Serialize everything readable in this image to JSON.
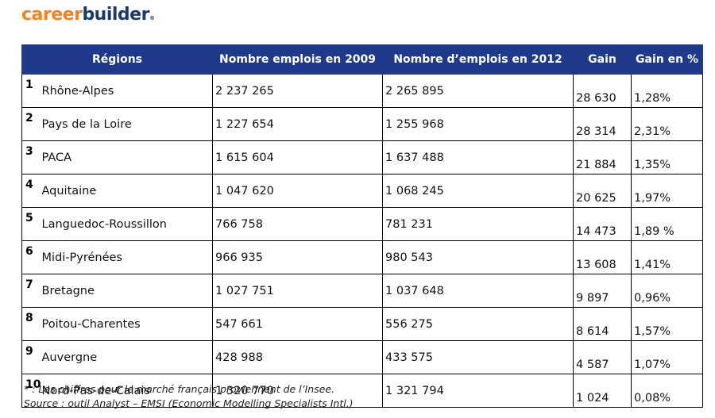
{
  "logo": {
    "part1": "career",
    "part2": "builder",
    "registered": "®"
  },
  "table": {
    "headers": {
      "regions": "Régions",
      "jobs_2009": "Nombre emplois en 2009",
      "jobs_2012": "Nombre d’emplois en 2012",
      "gain": "Gain",
      "gain_pct": "Gain en %"
    },
    "rows": [
      {
        "rank": "1",
        "region": "Rhône-Alpes",
        "jobs_2009": "2 237 265",
        "jobs_2012": "2 265 895",
        "gain": "28 630",
        "gain_pct": "1,28%"
      },
      {
        "rank": "2",
        "region": "Pays de la Loire",
        "jobs_2009": "1 227 654",
        "jobs_2012": "1 255 968",
        "gain": "28 314",
        "gain_pct": "2,31%"
      },
      {
        "rank": "3",
        "region": "PACA",
        "jobs_2009": "1 615 604",
        "jobs_2012": "1 637 488",
        "gain": "21 884",
        "gain_pct": "1,35%"
      },
      {
        "rank": "4",
        "region": "Aquitaine",
        "jobs_2009": "1 047 620",
        "jobs_2012": "1 068 245",
        "gain": "20 625",
        "gain_pct": "1,97%"
      },
      {
        "rank": "5",
        "region": "Languedoc-Roussillon",
        "jobs_2009": "766 758",
        "jobs_2012": "781 231",
        "gain": "14 473",
        "gain_pct": "1,89 %"
      },
      {
        "rank": "6",
        "region": "Midi-Pyrénées",
        "jobs_2009": "966 935",
        "jobs_2012": "980 543",
        "gain": "13 608",
        "gain_pct": "1,41%"
      },
      {
        "rank": "7",
        "region": "Bretagne",
        "jobs_2009": "1 027 751",
        "jobs_2012": "1 037 648",
        "gain": "9 897",
        "gain_pct": "0,96%"
      },
      {
        "rank": "8",
        "region": "Poitou-Charentes",
        "jobs_2009": "547 661",
        "jobs_2012": "556 275",
        "gain": "8 614",
        "gain_pct": "1,57%"
      },
      {
        "rank": "9",
        "region": "Auvergne",
        "jobs_2009": "428 988",
        "jobs_2012": "433 575",
        "gain": "4 587",
        "gain_pct": "1,07%"
      },
      {
        "rank": "10",
        "region": "Nord-Pas-de-Calais",
        "jobs_2009": "1 320 770",
        "jobs_2012": "1 321 794",
        "gain": "1 024",
        "gain_pct": "0,08%"
      }
    ]
  },
  "footnote": {
    "line1": "* : Les chiffres pour le marché français proviennent de l’Insee.",
    "line2": "Source : outil Analyst – EMSI (Economic Modelling Specialists Intl.)"
  },
  "colors": {
    "header_bg": "#1f3a8a",
    "logo_orange": "#f58220",
    "logo_navy": "#1b3a6b"
  }
}
